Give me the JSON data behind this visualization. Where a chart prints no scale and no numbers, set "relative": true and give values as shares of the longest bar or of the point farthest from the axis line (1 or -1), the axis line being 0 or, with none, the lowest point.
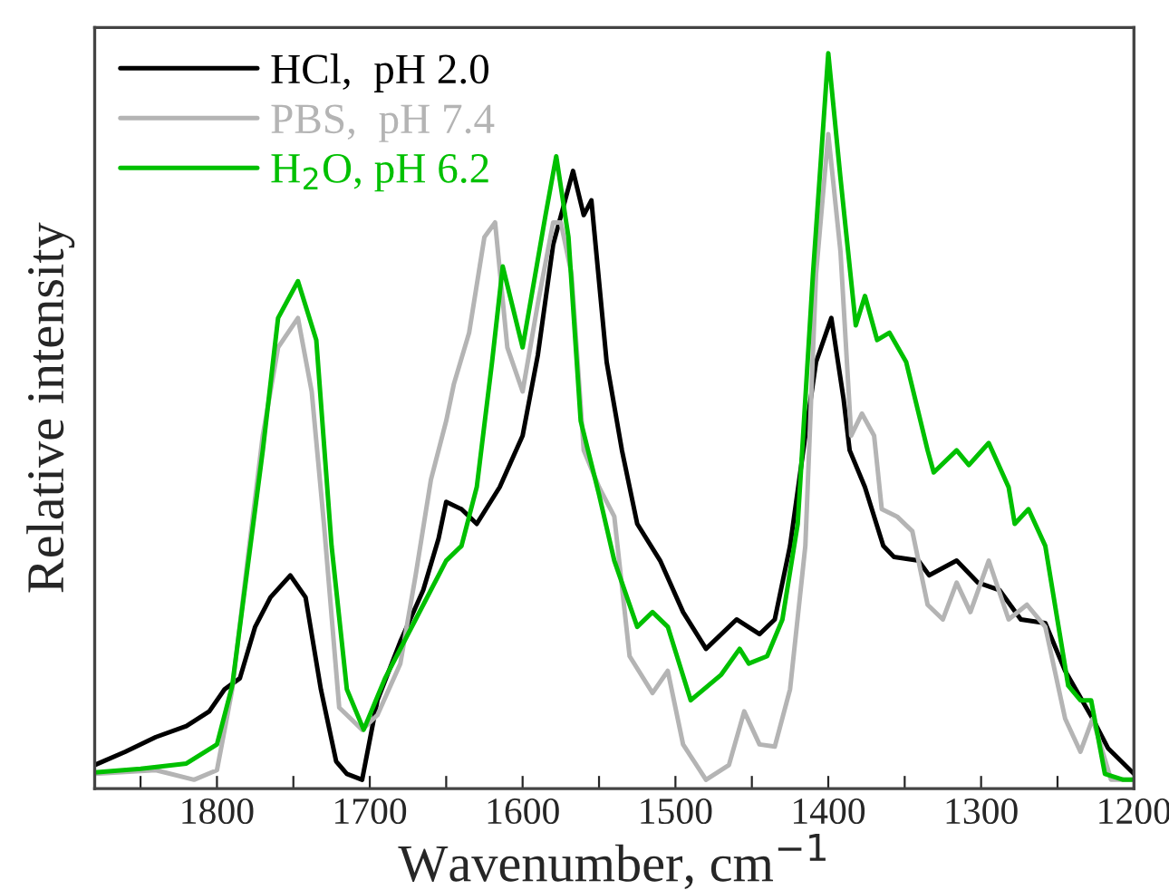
{
  "chart_data": {
    "type": "line",
    "relative": true,
    "xlabel": "Wavenumber, cm$^{−1}$",
    "ylabel": "Relative intensity",
    "xlim": [
      1880,
      1200
    ],
    "xticks": [
      {
        "value": 1850,
        "label": null
      },
      1800,
      {
        "value": 1750,
        "label": null
      },
      1700,
      {
        "value": 1650,
        "label": null
      },
      1600,
      {
        "value": 1550,
        "label": null
      },
      1500,
      {
        "value": 1450,
        "label": null
      },
      1400,
      {
        "value": 1350,
        "label": null
      },
      1300,
      {
        "value": 1250,
        "label": null
      },
      1200
    ],
    "legend": "top left",
    "line_style": "solid",
    "marker": "none",
    "series": [
      {
        "name": "HCl,  pH 2.0",
        "color": "#000000",
        "x": [
          1880,
          1860,
          1840,
          1820,
          1805,
          1795,
          1785,
          1775,
          1765,
          1752,
          1742,
          1732,
          1722,
          1715,
          1705,
          1695,
          1680,
          1665,
          1655,
          1650,
          1640,
          1630,
          1615,
          1600,
          1590,
          1580,
          1567,
          1560,
          1555,
          1545,
          1535,
          1525,
          1510,
          1495,
          1480,
          1460,
          1445,
          1435,
          1425,
          1415,
          1408,
          1398,
          1390,
          1386,
          1376,
          1364,
          1357,
          1341,
          1334,
          1316,
          1302,
          1288,
          1274,
          1258,
          1245,
          1227,
          1217,
          1200
        ],
        "values": [
          0.032,
          0.05,
          0.07,
          0.085,
          0.105,
          0.135,
          0.15,
          0.22,
          0.26,
          0.29,
          0.26,
          0.135,
          0.037,
          0.02,
          0.012,
          0.12,
          0.2,
          0.27,
          0.34,
          0.39,
          0.38,
          0.36,
          0.41,
          0.48,
          0.59,
          0.74,
          0.84,
          0.78,
          0.8,
          0.58,
          0.46,
          0.36,
          0.31,
          0.24,
          0.19,
          0.23,
          0.21,
          0.23,
          0.33,
          0.48,
          0.58,
          0.64,
          0.53,
          0.46,
          0.41,
          0.33,
          0.315,
          0.31,
          0.29,
          0.31,
          0.28,
          0.27,
          0.23,
          0.225,
          0.16,
          0.095,
          0.055,
          0.02
        ]
      },
      {
        "name": "PBS,  pH 7.4",
        "color": "#b4b4b4",
        "x": [
          1880,
          1840,
          1815,
          1800,
          1790,
          1780,
          1770,
          1760,
          1747,
          1738,
          1730,
          1720,
          1705,
          1695,
          1680,
          1670,
          1660,
          1650,
          1645,
          1635,
          1625,
          1618,
          1610,
          1600,
          1590,
          1580,
          1575,
          1568,
          1560,
          1550,
          1540,
          1530,
          1515,
          1505,
          1495,
          1480,
          1465,
          1455,
          1445,
          1435,
          1425,
          1415,
          1408,
          1400,
          1392,
          1385,
          1378,
          1370,
          1365,
          1355,
          1345,
          1335,
          1325,
          1316,
          1307,
          1295,
          1282,
          1270,
          1258,
          1245,
          1235,
          1227,
          1215,
          1200
        ],
        "values": [
          0.02,
          0.025,
          0.012,
          0.025,
          0.135,
          0.31,
          0.48,
          0.6,
          0.64,
          0.54,
          0.36,
          0.11,
          0.08,
          0.1,
          0.17,
          0.29,
          0.42,
          0.5,
          0.55,
          0.62,
          0.75,
          0.77,
          0.6,
          0.54,
          0.66,
          0.77,
          0.77,
          0.7,
          0.46,
          0.41,
          0.37,
          0.18,
          0.13,
          0.16,
          0.06,
          0.012,
          0.032,
          0.105,
          0.06,
          0.057,
          0.135,
          0.33,
          0.7,
          0.89,
          0.73,
          0.48,
          0.51,
          0.48,
          0.38,
          0.37,
          0.35,
          0.25,
          0.23,
          0.28,
          0.24,
          0.31,
          0.23,
          0.25,
          0.22,
          0.095,
          0.05,
          0.095,
          0.012,
          0.012
        ]
      },
      {
        "name": "H$_{2}$O, pH 6.2",
        "color": "#00c000",
        "x": [
          1880,
          1850,
          1820,
          1800,
          1790,
          1770,
          1760,
          1747,
          1735,
          1725,
          1715,
          1704,
          1690,
          1670,
          1650,
          1640,
          1630,
          1620,
          1613,
          1600,
          1585,
          1578,
          1570,
          1562,
          1550,
          1540,
          1525,
          1515,
          1505,
          1490,
          1470,
          1458,
          1452,
          1440,
          1430,
          1420,
          1410,
          1400,
          1392,
          1382,
          1376,
          1368,
          1360,
          1349,
          1335,
          1331,
          1316,
          1308,
          1295,
          1282,
          1278,
          1269,
          1258,
          1243,
          1235,
          1228,
          1219,
          1207,
          1200
        ],
        "values": [
          0.022,
          0.027,
          0.034,
          0.06,
          0.14,
          0.46,
          0.64,
          0.69,
          0.61,
          0.33,
          0.135,
          0.08,
          0.15,
          0.23,
          0.31,
          0.33,
          0.41,
          0.58,
          0.71,
          0.6,
          0.78,
          0.86,
          0.75,
          0.5,
          0.4,
          0.31,
          0.22,
          0.24,
          0.22,
          0.12,
          0.155,
          0.19,
          0.17,
          0.18,
          0.23,
          0.36,
          0.7,
          1.0,
          0.83,
          0.63,
          0.67,
          0.61,
          0.62,
          0.58,
          0.46,
          0.43,
          0.46,
          0.44,
          0.47,
          0.41,
          0.36,
          0.38,
          0.33,
          0.14,
          0.12,
          0.12,
          0.02,
          0.012,
          0.012
        ]
      }
    ]
  }
}
